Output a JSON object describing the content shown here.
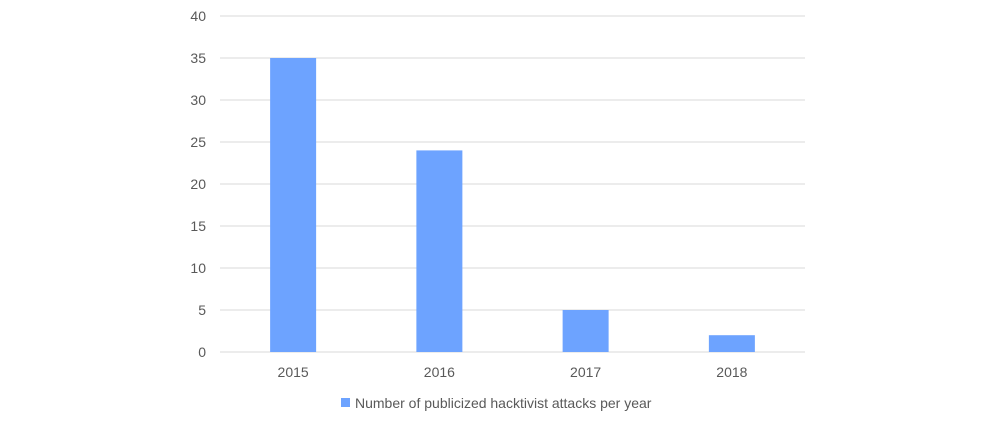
{
  "chart_data": {
    "type": "bar",
    "title": "",
    "xlabel": "",
    "ylabel": "",
    "categories": [
      "2015",
      "2016",
      "2017",
      "2018"
    ],
    "series": [
      {
        "name": "Number of publicized hacktivist attacks per year",
        "values": [
          35,
          24,
          5,
          2
        ]
      }
    ],
    "ylim": [
      0,
      40
    ],
    "yticks": [
      0,
      5,
      10,
      15,
      20,
      25,
      30,
      35,
      40
    ],
    "grid": true,
    "legend_position": "bottom",
    "colors": {
      "bar": "#6da3ff",
      "grid": "#d9d9d9",
      "text": "#595959"
    }
  }
}
